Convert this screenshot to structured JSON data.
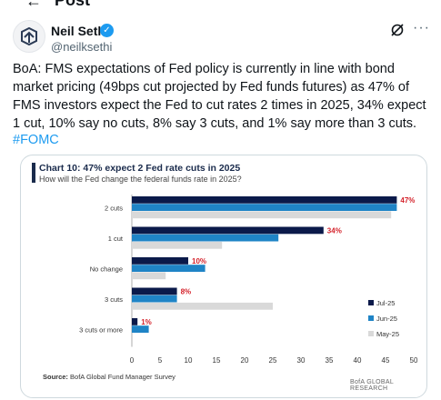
{
  "topbar": {
    "back_arrow": "←",
    "title": "Post"
  },
  "author": {
    "name": "Neil Sethi",
    "handle": "@neilksethi",
    "verified": true
  },
  "tweet": {
    "text": "BoA: FMS expectations of Fed policy is currently in line with bond market pricing (49bps cut projected by Fed funds futures) as 47% of FMS investors expect the Fed to cut rates 2 times in 2025, 34% expect 1 cut, 10% say no cuts, 8% say 3 cuts, and 1% say more than 3 cuts.",
    "hashtag": "#FOMC"
  },
  "icons": {
    "grok": "grok-icon",
    "more": "more-icon"
  },
  "chart_data": {
    "type": "bar",
    "orientation": "horizontal",
    "title": "Chart 10: 47% expect 2 Fed rate cuts in 2025",
    "subtitle": "How will the Fed change the federal funds rate in 2025?",
    "categories": [
      "2 cuts",
      "1 cut",
      "No change",
      "3 cuts",
      "3 cuts or more"
    ],
    "series": [
      {
        "name": "Jul-25",
        "color": "#0b1a4a",
        "values": [
          47,
          34,
          10,
          8,
          1
        ]
      },
      {
        "name": "Jun-25",
        "color": "#1f84c6",
        "values": [
          47,
          26,
          13,
          8,
          3
        ]
      },
      {
        "name": "May-25",
        "color": "#d9d9d9",
        "values": [
          46,
          16,
          6,
          25,
          0
        ]
      }
    ],
    "data_labels": [
      "47%",
      "34%",
      "10%",
      "8%",
      "1%"
    ],
    "data_label_color": "#d4212a",
    "xlim": [
      0,
      50
    ],
    "xticks": [
      "0",
      "5",
      "10",
      "15",
      "20",
      "25",
      "30",
      "35",
      "40",
      "45",
      "50"
    ],
    "legend_position": "right",
    "grid": false
  },
  "footer": {
    "source_label": "Source:",
    "source_text": "BofA Global Fund Manager Survey",
    "brand": "BofA GLOBAL RESEARCH"
  }
}
